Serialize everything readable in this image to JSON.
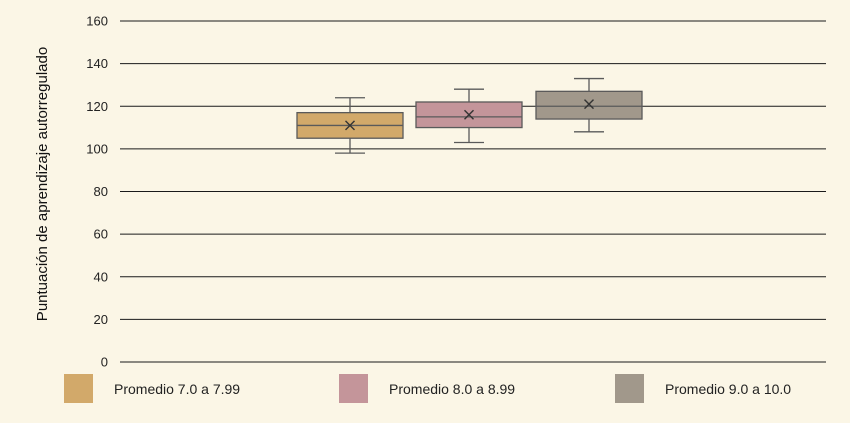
{
  "chart_data": {
    "type": "box",
    "ylabel": "Puntuación de aprendizaje autorregulado",
    "ylim": [
      0,
      160
    ],
    "yticks": [
      0,
      20,
      40,
      60,
      80,
      100,
      120,
      140,
      160
    ],
    "grid": true,
    "legend_position": "bottom",
    "series": [
      {
        "name": "Promedio 7.0 a 7.99",
        "color": "#d2a96a",
        "min": 98,
        "q1": 105,
        "median": 111,
        "q3": 117,
        "max": 124,
        "mean": 111
      },
      {
        "name": "Promedio 8.0 a 8.99",
        "color": "#c4959a",
        "min": 103,
        "q1": 110,
        "median": 115,
        "q3": 122,
        "max": 128,
        "mean": 116
      },
      {
        "name": "Promedio 9.0 a 10.0",
        "color": "#a1988b",
        "min": 108,
        "q1": 114,
        "median": 120,
        "q3": 127,
        "max": 133,
        "mean": 121
      }
    ]
  }
}
